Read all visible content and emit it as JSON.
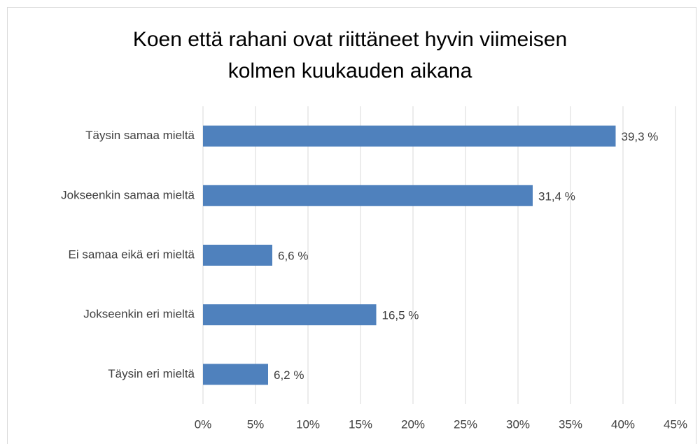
{
  "chart_data": {
    "type": "bar",
    "orientation": "horizontal",
    "title": "Koen että rahani ovat riittäneet hyvin viimeisen kolmen kuukauden aikana",
    "categories": [
      "Täysin samaa mieltä",
      "Jokseenkin samaa mieltä",
      "Ei samaa eikä eri mieltä",
      "Jokseenkin eri mieltä",
      "Täysin eri mieltä"
    ],
    "values": [
      39.3,
      31.4,
      6.6,
      16.5,
      6.2
    ],
    "value_labels": [
      "39,3 %",
      "31,4 %",
      "6,6 %",
      "16,5 %",
      "6,2 %"
    ],
    "color": "#4f81bd",
    "xlim": [
      0,
      45
    ],
    "xticks": [
      {
        "value": 0,
        "label": "0%"
      },
      {
        "value": 5,
        "label": "5%"
      },
      {
        "value": 10,
        "label": "10%"
      },
      {
        "value": 15,
        "label": "15%"
      },
      {
        "value": 20,
        "label": "20%"
      },
      {
        "value": 25,
        "label": "25%"
      },
      {
        "value": 30,
        "label": "30%"
      },
      {
        "value": 35,
        "label": "35%"
      },
      {
        "value": 40,
        "label": "40%"
      },
      {
        "value": 45,
        "label": "45%"
      }
    ],
    "grid": true
  }
}
